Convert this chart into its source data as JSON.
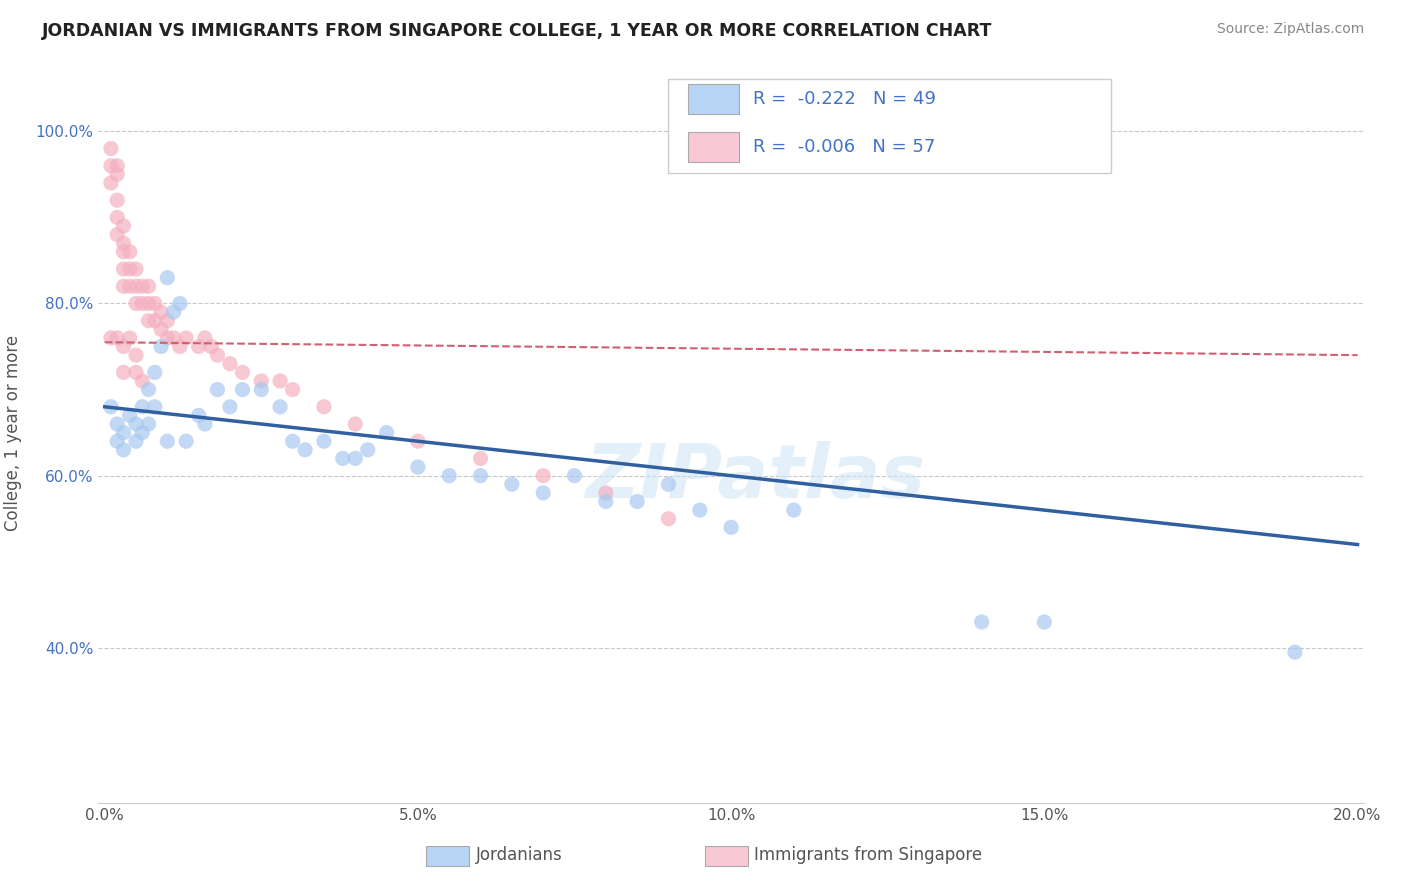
{
  "title": "JORDANIAN VS IMMIGRANTS FROM SINGAPORE COLLEGE, 1 YEAR OR MORE CORRELATION CHART",
  "source": "Source: ZipAtlas.com",
  "ylabel": "College, 1 year or more",
  "legend_label_blue": "Jordanians",
  "legend_label_pink": "Immigrants from Singapore",
  "r_blue": -0.222,
  "n_blue": 49,
  "r_pink": -0.006,
  "n_pink": 57,
  "xlim": [
    -0.001,
    0.201
  ],
  "ylim": [
    0.22,
    1.08
  ],
  "xticks": [
    0.0,
    0.05,
    0.1,
    0.15,
    0.2
  ],
  "xtick_labels": [
    "0.0%",
    "5.0%",
    "10.0%",
    "15.0%",
    "20.0%"
  ],
  "yticks": [
    0.4,
    0.6,
    0.8,
    1.0
  ],
  "ytick_labels": [
    "40.0%",
    "60.0%",
    "80.0%",
    "100.0%"
  ],
  "color_blue": "#a8c8f0",
  "color_pink": "#f4b0c0",
  "color_blue_line": "#3060a0",
  "color_pink_line": "#d06070",
  "color_blue_legend": "#b8d4f4",
  "color_pink_legend": "#f8c8d4",
  "background": "#ffffff",
  "grid_color": "#c8c8c8",
  "watermark": "ZIPatlas",
  "blue_x": [
    0.001,
    0.002,
    0.002,
    0.003,
    0.003,
    0.004,
    0.005,
    0.005,
    0.006,
    0.006,
    0.007,
    0.007,
    0.008,
    0.008,
    0.009,
    0.01,
    0.01,
    0.011,
    0.012,
    0.013,
    0.015,
    0.016,
    0.018,
    0.02,
    0.022,
    0.025,
    0.028,
    0.03,
    0.032,
    0.035,
    0.038,
    0.04,
    0.042,
    0.045,
    0.05,
    0.055,
    0.06,
    0.065,
    0.07,
    0.075,
    0.08,
    0.085,
    0.09,
    0.095,
    0.1,
    0.11,
    0.14,
    0.15,
    0.19
  ],
  "blue_y": [
    0.68,
    0.66,
    0.64,
    0.65,
    0.63,
    0.67,
    0.66,
    0.64,
    0.68,
    0.65,
    0.7,
    0.66,
    0.72,
    0.68,
    0.75,
    0.83,
    0.64,
    0.79,
    0.8,
    0.64,
    0.67,
    0.66,
    0.7,
    0.68,
    0.7,
    0.7,
    0.68,
    0.64,
    0.63,
    0.64,
    0.62,
    0.62,
    0.63,
    0.65,
    0.61,
    0.6,
    0.6,
    0.59,
    0.58,
    0.6,
    0.57,
    0.57,
    0.59,
    0.56,
    0.54,
    0.56,
    0.43,
    0.43,
    0.395
  ],
  "pink_x": [
    0.001,
    0.001,
    0.001,
    0.002,
    0.002,
    0.002,
    0.002,
    0.002,
    0.003,
    0.003,
    0.003,
    0.003,
    0.003,
    0.004,
    0.004,
    0.004,
    0.005,
    0.005,
    0.005,
    0.006,
    0.006,
    0.007,
    0.007,
    0.007,
    0.008,
    0.008,
    0.009,
    0.009,
    0.01,
    0.01,
    0.011,
    0.012,
    0.013,
    0.015,
    0.016,
    0.017,
    0.018,
    0.02,
    0.022,
    0.025,
    0.028,
    0.03,
    0.035,
    0.04,
    0.05,
    0.06,
    0.07,
    0.08,
    0.09,
    0.001,
    0.002,
    0.003,
    0.003,
    0.004,
    0.005,
    0.005,
    0.006
  ],
  "pink_y": [
    0.98,
    0.96,
    0.94,
    0.96,
    0.95,
    0.92,
    0.9,
    0.88,
    0.89,
    0.87,
    0.86,
    0.84,
    0.82,
    0.86,
    0.84,
    0.82,
    0.84,
    0.82,
    0.8,
    0.82,
    0.8,
    0.82,
    0.8,
    0.78,
    0.8,
    0.78,
    0.79,
    0.77,
    0.78,
    0.76,
    0.76,
    0.75,
    0.76,
    0.75,
    0.76,
    0.75,
    0.74,
    0.73,
    0.72,
    0.71,
    0.71,
    0.7,
    0.68,
    0.66,
    0.64,
    0.62,
    0.6,
    0.58,
    0.55,
    0.76,
    0.76,
    0.75,
    0.72,
    0.76,
    0.74,
    0.72,
    0.71
  ],
  "blue_line_x0": 0.0,
  "blue_line_x1": 0.2,
  "blue_line_y0": 0.68,
  "blue_line_y1": 0.52,
  "pink_line_x0": 0.0,
  "pink_line_x1": 0.2,
  "pink_line_y0": 0.755,
  "pink_line_y1": 0.74
}
